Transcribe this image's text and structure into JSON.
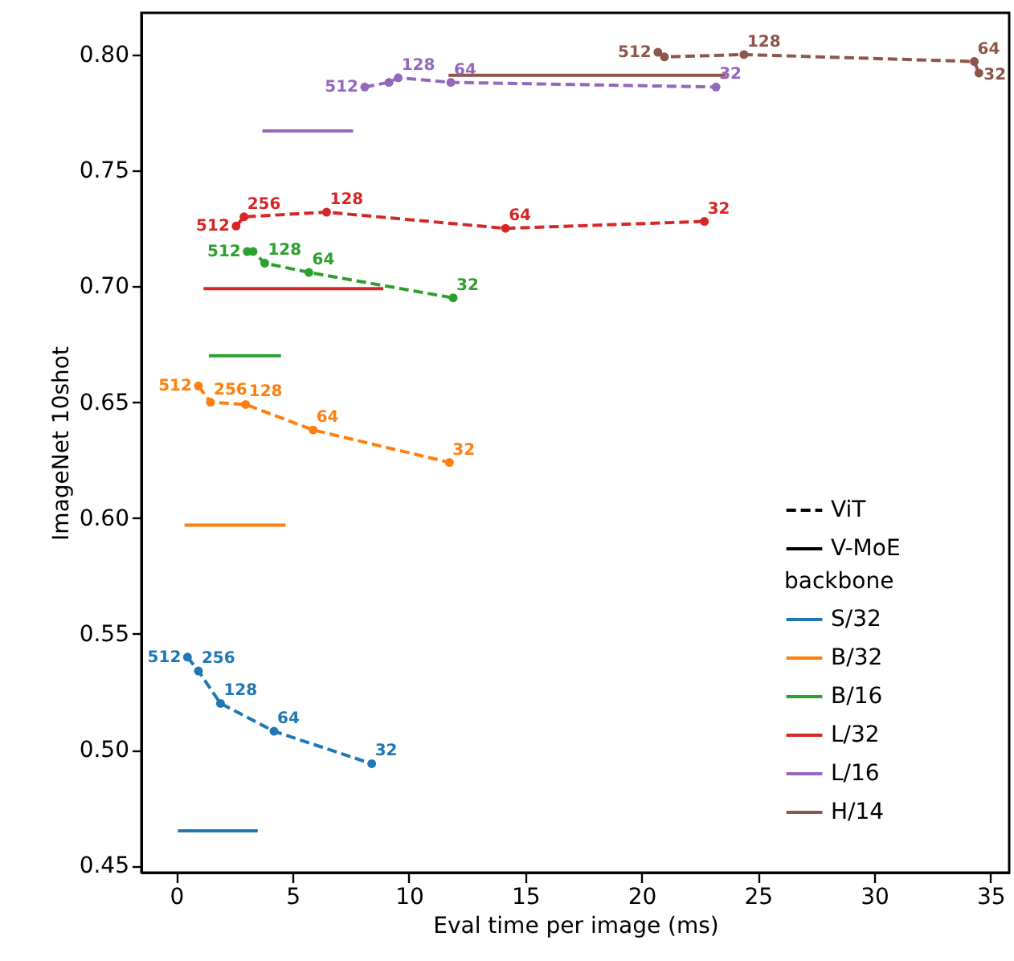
{
  "chart_data": {
    "type": "line",
    "xlabel": "Eval time per image (ms)",
    "ylabel": "ImageNet 10shot",
    "xlim": [
      -1.5,
      35.8
    ],
    "ylim": [
      0.447,
      0.818
    ],
    "xticks": [
      0,
      5,
      10,
      15,
      20,
      25,
      30,
      35
    ],
    "yticks": [
      {
        "value": 0.45,
        "label": "0.45"
      },
      {
        "value": 0.5,
        "label": "0.50"
      },
      {
        "value": 0.55,
        "label": "0.55"
      },
      {
        "value": 0.6,
        "label": "0.60"
      },
      {
        "value": 0.65,
        "label": "0.65"
      },
      {
        "value": 0.7,
        "label": "0.70"
      },
      {
        "value": 0.75,
        "label": "0.75"
      },
      {
        "value": 0.8,
        "label": "0.80"
      }
    ],
    "grid": false,
    "legend": "bottom right",
    "legend_title": "backbone",
    "annotations": [
      "ViT",
      "V-MoE",
      {
        "text": "512",
        "x": 0.48,
        "y": 0.54
      },
      {
        "text": "256",
        "x": 0.95,
        "y": 0.534
      },
      {
        "text": "128",
        "x": 1.9,
        "y": 0.52
      },
      {
        "text": "64",
        "x": 4.2,
        "y": 0.508
      },
      {
        "text": "32",
        "x": 8.4,
        "y": 0.494
      },
      {
        "text": "512",
        "x": 0.95,
        "y": 0.657
      },
      {
        "text": "256",
        "x": 1.47,
        "y": 0.65
      },
      {
        "text": "128",
        "x": 2.98,
        "y": 0.649
      },
      {
        "text": "64",
        "x": 5.88,
        "y": 0.638
      },
      {
        "text": "32",
        "x": 11.74,
        "y": 0.624
      },
      {
        "text": "512",
        "x": 3.05,
        "y": 0.715
      },
      {
        "text": "128",
        "x": 3.8,
        "y": 0.71
      },
      {
        "text": "64",
        "x": 5.7,
        "y": 0.706
      },
      {
        "text": "32",
        "x": 11.9,
        "y": 0.695
      },
      {
        "text": "512",
        "x": 2.57,
        "y": 0.726
      },
      {
        "text": "256",
        "x": 2.91,
        "y": 0.73
      },
      {
        "text": "128",
        "x": 6.46,
        "y": 0.732
      },
      {
        "text": "64",
        "x": 14.15,
        "y": 0.725
      },
      {
        "text": "32",
        "x": 22.7,
        "y": 0.728
      },
      {
        "text": "512",
        "x": 8.1,
        "y": 0.786
      },
      {
        "text": "128",
        "x": 9.54,
        "y": 0.79
      },
      {
        "text": "64",
        "x": 11.8,
        "y": 0.788
      },
      {
        "text": "32",
        "x": 23.2,
        "y": 0.786
      },
      {
        "text": "512",
        "x": 20.7,
        "y": 0.801
      },
      {
        "text": "128",
        "x": 24.4,
        "y": 0.8
      },
      {
        "text": "64",
        "x": 34.3,
        "y": 0.797
      },
      {
        "text": "32",
        "x": 34.5,
        "y": 0.792
      }
    ],
    "series": [
      {
        "name": "S/32",
        "color": "#1f77b4",
        "line_style": "dashed",
        "marker": "circle",
        "x": [
          0.48,
          0.95,
          1.9,
          4.2,
          8.4
        ],
        "values": [
          0.54,
          0.534,
          0.52,
          0.508,
          0.494
        ]
      },
      {
        "color": "#1f77b4",
        "line_style": "solid",
        "marker": "none",
        "x": [
          0.07,
          3.5
        ],
        "values": [
          0.465,
          0.465
        ]
      },
      {
        "name": "B/32",
        "color": "#ff7f0e",
        "line_style": "dashed",
        "marker": "circle",
        "x": [
          0.95,
          1.47,
          2.98,
          5.88,
          11.74
        ],
        "values": [
          0.657,
          0.65,
          0.649,
          0.638,
          0.624
        ]
      },
      {
        "color": "#ff7f0e",
        "line_style": "solid",
        "marker": "none",
        "x": [
          0.35,
          4.7
        ],
        "values": [
          0.597,
          0.597
        ]
      },
      {
        "name": "B/16",
        "color": "#2ca02c",
        "line_style": "dashed",
        "marker": "circle",
        "x": [
          3.05,
          3.3,
          3.8,
          5.7,
          11.9
        ],
        "values": [
          0.715,
          0.715,
          0.71,
          0.706,
          0.695
        ]
      },
      {
        "color": "#2ca02c",
        "line_style": "solid",
        "marker": "none",
        "x": [
          1.4,
          4.5
        ],
        "values": [
          0.67,
          0.67
        ]
      },
      {
        "name": "L/32",
        "color": "#d62728",
        "line_style": "dashed",
        "marker": "circle",
        "x": [
          2.57,
          2.91,
          6.46,
          14.15,
          22.7
        ],
        "values": [
          0.726,
          0.73,
          0.732,
          0.725,
          0.728
        ]
      },
      {
        "color": "#d62728",
        "line_style": "solid",
        "marker": "none",
        "x": [
          1.17,
          8.9
        ],
        "values": [
          0.699,
          0.699
        ]
      },
      {
        "name": "L/16",
        "color": "#9467bd",
        "line_style": "dashed",
        "marker": "circle",
        "x": [
          8.1,
          9.14,
          9.54,
          11.8,
          23.2
        ],
        "values": [
          0.786,
          0.788,
          0.79,
          0.788,
          0.786
        ]
      },
      {
        "color": "#9467bd",
        "line_style": "solid",
        "marker": "none",
        "x": [
          3.7,
          7.6
        ],
        "values": [
          0.767,
          0.767
        ]
      },
      {
        "name": "H/14",
        "color": "#8c564b",
        "line_style": "dashed",
        "marker": "circle",
        "x": [
          20.7,
          20.98,
          24.4,
          34.3,
          34.5
        ],
        "values": [
          0.801,
          0.799,
          0.8,
          0.797,
          0.792
        ]
      },
      {
        "color": "#8c564b",
        "line_style": "solid",
        "marker": "none",
        "x": [
          11.7,
          23.6
        ],
        "values": [
          0.791,
          0.791
        ]
      }
    ]
  }
}
